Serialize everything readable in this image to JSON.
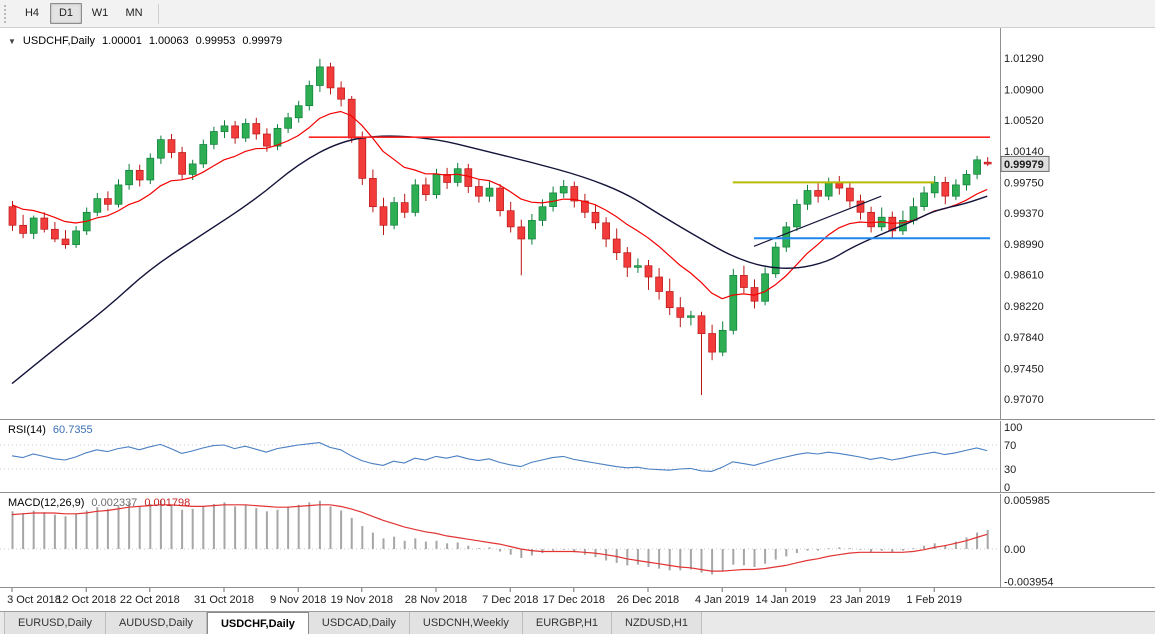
{
  "timeframe_toolbar": {
    "buttons": [
      {
        "label": "H4",
        "active": false
      },
      {
        "label": "D1",
        "active": true
      },
      {
        "label": "W1",
        "active": false
      },
      {
        "label": "MN",
        "active": false
      }
    ]
  },
  "chart_header": {
    "dropdown_icon": "▼",
    "symbol": "USDCHF,Daily",
    "open": "1.00001",
    "high": "1.00063",
    "low": "0.99953",
    "close": "0.99979"
  },
  "price_axis_labels": [
    "1.01290",
    "1.00900",
    "1.00520",
    "1.00140",
    "0.99750",
    "0.99370",
    "0.98990",
    "0.98610",
    "0.98220",
    "0.97840",
    "0.97450",
    "0.97070"
  ],
  "current_price_label": "0.99979",
  "time_axis_labels": [
    "3 Oct 2018",
    "12 Oct 2018",
    "22 Oct 2018",
    "31 Oct 2018",
    "9 Nov 2018",
    "19 Nov 2018",
    "28 Nov 2018",
    "7 Dec 2018",
    "17 Dec 2018",
    "26 Dec 2018",
    "4 Jan 2019",
    "14 Jan 2019",
    "23 Jan 2019",
    "1 Feb 2019"
  ],
  "rsi_panel": {
    "name": "RSI(14)",
    "value": "60.7355",
    "scale_labels": [
      "100",
      "70",
      "30",
      "0"
    ]
  },
  "macd_panel": {
    "name": "MACD(12,26,9)",
    "value_macd": "0.002337",
    "value_signal": "0.001798",
    "scale_labels": [
      "0.005985",
      "0.00",
      "-0.003954"
    ]
  },
  "chart_tabs": [
    {
      "label": "EURUSD,Daily",
      "active": false
    },
    {
      "label": "AUDUSD,Daily",
      "active": false
    },
    {
      "label": "USDCHF,Daily",
      "active": true
    },
    {
      "label": "USDCAD,Daily",
      "active": false
    },
    {
      "label": "USDCNH,Weekly",
      "active": false
    },
    {
      "label": "EURGBP,H1",
      "active": false
    },
    {
      "label": "NZDUSD,H1",
      "active": false
    }
  ],
  "colors": {
    "bull": "#2eae53",
    "bull_border": "#0e7e3b",
    "bear": "#f23b3b",
    "bear_border": "#bb1717",
    "ma_fast": "#f40000",
    "ma_slow": "#14143a",
    "resistance_line": "#ff2424",
    "pivot_line": "#b6ba00",
    "support_line": "#1c86ee",
    "rsi_line": "#4a7fc1",
    "macd_histogram": "#a6a6a6",
    "macd_signal": "#e23333"
  },
  "chart_data": {
    "type": "candlestick",
    "symbol": "USDCHF",
    "timeframe": "Daily",
    "price_axis_range": [
      0.9707,
      1.0129
    ],
    "time_tick_indices": [
      0,
      7,
      13,
      20,
      27,
      33,
      40,
      47,
      53,
      60,
      67,
      73,
      80,
      87
    ],
    "dates": [
      "3 Oct",
      "4 Oct",
      "5 Oct",
      "8 Oct",
      "9 Oct",
      "10 Oct",
      "11 Oct",
      "12 Oct",
      "15 Oct",
      "16 Oct",
      "17 Oct",
      "18 Oct",
      "19 Oct",
      "22 Oct",
      "23 Oct",
      "24 Oct",
      "25 Oct",
      "26 Oct",
      "29 Oct",
      "30 Oct",
      "31 Oct",
      "1 Nov",
      "2 Nov",
      "5 Nov",
      "6 Nov",
      "7 Nov",
      "8 Nov",
      "9 Nov",
      "12 Nov",
      "13 Nov",
      "14 Nov",
      "15 Nov",
      "16 Nov",
      "19 Nov",
      "20 Nov",
      "21 Nov",
      "22 Nov",
      "23 Nov",
      "26 Nov",
      "27 Nov",
      "28 Nov",
      "29 Nov",
      "30 Nov",
      "3 Dec",
      "4 Dec",
      "5 Dec",
      "6 Dec",
      "7 Dec",
      "10 Dec",
      "11 Dec",
      "12 Dec",
      "13 Dec",
      "14 Dec",
      "17 Dec",
      "18 Dec",
      "19 Dec",
      "20 Dec",
      "21 Dec",
      "24 Dec",
      "25 Dec",
      "26 Dec",
      "27 Dec",
      "28 Dec",
      "31 Dec",
      "1 Jan",
      "2 Jan",
      "3 Jan",
      "4 Jan",
      "7 Jan",
      "8 Jan",
      "9 Jan",
      "10 Jan",
      "11 Jan",
      "14 Jan",
      "15 Jan",
      "16 Jan",
      "17 Jan",
      "18 Jan",
      "21 Jan",
      "22 Jan",
      "23 Jan",
      "24 Jan",
      "25 Jan",
      "28 Jan",
      "29 Jan",
      "30 Jan",
      "31 Jan",
      "1 Feb",
      "4 Feb",
      "5 Feb",
      "6 Feb",
      "7 Feb",
      "8 Feb"
    ],
    "ohlc": [
      [
        0.9945,
        0.9952,
        0.9915,
        0.9922
      ],
      [
        0.9922,
        0.9935,
        0.9906,
        0.9912
      ],
      [
        0.9912,
        0.9934,
        0.9905,
        0.9931
      ],
      [
        0.9931,
        0.9938,
        0.9913,
        0.9917
      ],
      [
        0.9917,
        0.9926,
        0.9901,
        0.9905
      ],
      [
        0.9905,
        0.9916,
        0.9893,
        0.9898
      ],
      [
        0.9898,
        0.9921,
        0.9894,
        0.9915
      ],
      [
        0.9915,
        0.9944,
        0.991,
        0.9938
      ],
      [
        0.9938,
        0.9962,
        0.9933,
        0.9955
      ],
      [
        0.9955,
        0.9964,
        0.994,
        0.9948
      ],
      [
        0.9948,
        0.9979,
        0.9944,
        0.9972
      ],
      [
        0.9972,
        0.9998,
        0.9966,
        0.999
      ],
      [
        0.999,
        0.9997,
        0.997,
        0.9978
      ],
      [
        0.9978,
        1.0011,
        0.9973,
        1.0005
      ],
      [
        1.0005,
        1.0033,
        0.9998,
        1.0028
      ],
      [
        1.0028,
        1.0035,
        1.0005,
        1.0012
      ],
      [
        1.0012,
        1.0019,
        0.9979,
        0.9985
      ],
      [
        0.9985,
        1.0003,
        0.9978,
        0.9998
      ],
      [
        0.9998,
        1.0028,
        0.9993,
        1.0022
      ],
      [
        1.0022,
        1.0044,
        1.0016,
        1.0038
      ],
      [
        1.0038,
        1.0052,
        1.003,
        1.0045
      ],
      [
        1.0045,
        1.0051,
        1.0023,
        1.003
      ],
      [
        1.003,
        1.0054,
        1.0025,
        1.0048
      ],
      [
        1.0048,
        1.0055,
        1.0028,
        1.0035
      ],
      [
        1.0035,
        1.0042,
        1.0013,
        1.002
      ],
      [
        1.002,
        1.0047,
        1.0015,
        1.0042
      ],
      [
        1.0042,
        1.0061,
        1.0036,
        1.0055
      ],
      [
        1.0055,
        1.0076,
        1.0049,
        1.007
      ],
      [
        1.007,
        1.0101,
        1.0064,
        1.0095
      ],
      [
        1.0095,
        1.0128,
        1.0087,
        1.0118
      ],
      [
        1.0118,
        1.0123,
        1.0084,
        1.0092
      ],
      [
        1.0092,
        1.01,
        1.0069,
        1.0078
      ],
      [
        1.0078,
        1.0082,
        1.0024,
        1.003
      ],
      [
        1.003,
        1.0038,
        0.9972,
        0.998
      ],
      [
        0.998,
        0.9991,
        0.9938,
        0.9945
      ],
      [
        0.9945,
        0.9956,
        0.991,
        0.9922
      ],
      [
        0.9922,
        0.9957,
        0.9917,
        0.995
      ],
      [
        0.995,
        0.9961,
        0.9931,
        0.9938
      ],
      [
        0.9938,
        0.9979,
        0.9933,
        0.9972
      ],
      [
        0.9972,
        0.9981,
        0.9952,
        0.996
      ],
      [
        0.996,
        0.9992,
        0.9955,
        0.9985
      ],
      [
        0.9985,
        0.9993,
        0.9967,
        0.9975
      ],
      [
        0.9975,
        0.9999,
        0.997,
        0.9992
      ],
      [
        0.9992,
        0.9998,
        0.9962,
        0.997
      ],
      [
        0.997,
        0.9978,
        0.995,
        0.9958
      ],
      [
        0.9958,
        0.9976,
        0.9951,
        0.9968
      ],
      [
        0.9968,
        0.9973,
        0.9933,
        0.994
      ],
      [
        0.994,
        0.9951,
        0.9913,
        0.992
      ],
      [
        0.992,
        0.9929,
        0.986,
        0.9905
      ],
      [
        0.9905,
        0.9936,
        0.9898,
        0.9928
      ],
      [
        0.9928,
        0.9954,
        0.9921,
        0.9945
      ],
      [
        0.9945,
        0.997,
        0.9939,
        0.9962
      ],
      [
        0.9962,
        0.9978,
        0.9956,
        0.997
      ],
      [
        0.997,
        0.9976,
        0.9944,
        0.9952
      ],
      [
        0.9952,
        0.9961,
        0.9931,
        0.9938
      ],
      [
        0.9938,
        0.9948,
        0.9917,
        0.9925
      ],
      [
        0.9925,
        0.9932,
        0.9895,
        0.9905
      ],
      [
        0.9905,
        0.9918,
        0.9879,
        0.9888
      ],
      [
        0.9888,
        0.9895,
        0.9858,
        0.987
      ],
      [
        0.987,
        0.9881,
        0.9863,
        0.9872
      ],
      [
        0.9872,
        0.9879,
        0.9842,
        0.9858
      ],
      [
        0.9858,
        0.9869,
        0.983,
        0.984
      ],
      [
        0.984,
        0.9856,
        0.9811,
        0.982
      ],
      [
        0.982,
        0.9833,
        0.9796,
        0.9808
      ],
      [
        0.9808,
        0.9816,
        0.9798,
        0.981
      ],
      [
        0.981,
        0.9815,
        0.9712,
        0.9788
      ],
      [
        0.9788,
        0.9799,
        0.9755,
        0.9765
      ],
      [
        0.9765,
        0.9803,
        0.976,
        0.9792
      ],
      [
        0.9792,
        0.9868,
        0.9787,
        0.986
      ],
      [
        0.986,
        0.9872,
        0.9838,
        0.9845
      ],
      [
        0.9845,
        0.9855,
        0.9819,
        0.9828
      ],
      [
        0.9828,
        0.987,
        0.9823,
        0.9862
      ],
      [
        0.9862,
        0.9901,
        0.9857,
        0.9895
      ],
      [
        0.9895,
        0.9926,
        0.9889,
        0.992
      ],
      [
        0.992,
        0.9954,
        0.9915,
        0.9948
      ],
      [
        0.9948,
        0.9972,
        0.9941,
        0.9965
      ],
      [
        0.9965,
        0.9974,
        0.995,
        0.9958
      ],
      [
        0.9958,
        0.9981,
        0.9953,
        0.9975
      ],
      [
        0.9975,
        0.9983,
        0.996,
        0.9968
      ],
      [
        0.9968,
        0.9976,
        0.9944,
        0.9952
      ],
      [
        0.9952,
        0.996,
        0.9929,
        0.9938
      ],
      [
        0.9938,
        0.9945,
        0.9913,
        0.992
      ],
      [
        0.992,
        0.9944,
        0.9915,
        0.9932
      ],
      [
        0.9932,
        0.9939,
        0.9906,
        0.9915
      ],
      [
        0.9915,
        0.994,
        0.991,
        0.9928
      ],
      [
        0.9928,
        0.9956,
        0.9923,
        0.9945
      ],
      [
        0.9945,
        0.997,
        0.994,
        0.9962
      ],
      [
        0.9962,
        0.9983,
        0.9956,
        0.9975
      ],
      [
        0.9975,
        0.9982,
        0.9948,
        0.9958
      ],
      [
        0.9958,
        0.9979,
        0.9953,
        0.9972
      ],
      [
        0.9972,
        0.999,
        0.9965,
        0.9985
      ],
      [
        0.9985,
        1.0008,
        0.9979,
        1.0003
      ],
      [
        1.00001,
        1.00063,
        0.99953,
        0.99979
      ]
    ],
    "overlays": {
      "fast_ma_period": 12,
      "fast_ma_seed": 0.9952,
      "slow_ma_points": [
        [
          0,
          0.9726
        ],
        [
          4,
          0.9769
        ],
        [
          9,
          0.982
        ],
        [
          13,
          0.9868
        ],
        [
          18,
          0.9911
        ],
        [
          23,
          0.9954
        ],
        [
          27,
          0.9998
        ],
        [
          31,
          1.0026
        ],
        [
          35,
          1.0034
        ],
        [
          40,
          1.0029
        ],
        [
          44,
          1.0016
        ],
        [
          49,
          1.0
        ],
        [
          54,
          0.9982
        ],
        [
          58,
          0.9961
        ],
        [
          61,
          0.9936
        ],
        [
          65,
          0.9905
        ],
        [
          68,
          0.9883
        ],
        [
          71,
          0.987
        ],
        [
          74,
          0.9868
        ],
        [
          77,
          0.9877
        ],
        [
          79,
          0.9893
        ],
        [
          82,
          0.9911
        ],
        [
          85,
          0.9927
        ],
        [
          87,
          0.994
        ],
        [
          90,
          0.9949
        ],
        [
          92,
          0.9958
        ]
      ],
      "trendline": {
        "from": [
          70,
          0.9896
        ],
        "to": [
          82,
          0.9958
        ]
      },
      "hlines": [
        {
          "name": "resistance-line",
          "price": 1.0031,
          "from_index": 28,
          "to_index": null,
          "color_key": "resistance_line",
          "width": 1.6
        },
        {
          "name": "range-top-line",
          "price": 0.9975,
          "from_index": 68,
          "to_index": 87,
          "color_key": "pivot_line",
          "width": 2
        },
        {
          "name": "support-line",
          "price": 0.9906,
          "from_index": 70,
          "to_index": null,
          "color_key": "support_line",
          "width": 2
        }
      ]
    },
    "rsi": {
      "period": 14,
      "current": 60.7355,
      "range": [
        0,
        100
      ],
      "levels": [
        70,
        30
      ],
      "values": [
        52,
        49,
        55,
        51,
        47,
        45,
        50,
        57,
        62,
        59,
        64,
        67,
        62,
        67,
        71,
        64,
        56,
        60,
        65,
        69,
        70,
        64,
        68,
        63,
        58,
        64,
        67,
        70,
        72,
        74,
        66,
        62,
        52,
        44,
        39,
        36,
        43,
        40,
        48,
        45,
        51,
        48,
        52,
        47,
        44,
        47,
        41,
        37,
        34,
        41,
        45,
        49,
        51,
        46,
        43,
        40,
        37,
        34,
        32,
        33,
        30,
        29,
        28,
        30,
        31,
        27,
        26,
        33,
        42,
        39,
        36,
        41,
        46,
        50,
        54,
        57,
        55,
        58,
        56,
        53,
        50,
        46,
        49,
        45,
        48,
        52,
        55,
        58,
        54,
        57,
        61,
        65,
        60.7355
      ]
    },
    "macd": {
      "fast": 12,
      "slow": 26,
      "signal_period": 9,
      "current_macd": 0.002337,
      "current_signal": 0.001798,
      "scale_range": [
        -0.003954,
        0.005985
      ],
      "histogram": [
        0.0046,
        0.0044,
        0.0047,
        0.0045,
        0.0042,
        0.004,
        0.0043,
        0.0047,
        0.0051,
        0.0049,
        0.0053,
        0.0056,
        0.0052,
        0.0055,
        0.005985,
        0.0054,
        0.0048,
        0.0049,
        0.0052,
        0.0055,
        0.0057,
        0.0052,
        0.0054,
        0.005,
        0.0046,
        0.0048,
        0.0051,
        0.0054,
        0.0057,
        0.0059,
        0.0052,
        0.0047,
        0.0038,
        0.0028,
        0.002,
        0.0013,
        0.0015,
        0.001,
        0.0013,
        0.0009,
        0.001,
        0.0007,
        0.0008,
        0.0004,
        0.0001,
        0.0002,
        -0.0003,
        -0.0007,
        -0.0011,
        -0.0008,
        -0.0005,
        -0.0002,
        -0.0001,
        -0.0004,
        -0.0007,
        -0.001,
        -0.0014,
        -0.0017,
        -0.002,
        -0.0019,
        -0.0022,
        -0.0024,
        -0.0026,
        -0.0026,
        -0.0025,
        -0.0029,
        -0.0031,
        -0.0027,
        -0.0019,
        -0.002,
        -0.0022,
        -0.0018,
        -0.0013,
        -0.0009,
        -0.0005,
        -0.0002,
        -0.0002,
        0.0001,
        0.0002,
        0.0001,
        -0.0001,
        -0.0004,
        -0.0002,
        -0.0004,
        -0.0002,
        0.0001,
        0.0004,
        0.0007,
        0.0005,
        0.0009,
        0.0014,
        0.002,
        0.002337
      ],
      "signal": [
        0.0042,
        0.0043,
        0.0044,
        0.0044,
        0.0044,
        0.0043,
        0.0043,
        0.0044,
        0.0046,
        0.0047,
        0.0049,
        0.0051,
        0.0052,
        0.0053,
        0.0054,
        0.0054,
        0.0053,
        0.0052,
        0.0052,
        0.0053,
        0.0054,
        0.0054,
        0.0054,
        0.0053,
        0.0052,
        0.0051,
        0.0051,
        0.0052,
        0.0053,
        0.0054,
        0.0054,
        0.0052,
        0.0049,
        0.0045,
        0.004,
        0.0035,
        0.0031,
        0.0027,
        0.0024,
        0.0021,
        0.0019,
        0.0016,
        0.0014,
        0.0012,
        0.001,
        0.0008,
        0.0006,
        0.0003,
        0.0,
        -0.0002,
        -0.0003,
        -0.0003,
        -0.0003,
        -0.0003,
        -0.0004,
        -0.0005,
        -0.0007,
        -0.0009,
        -0.0012,
        -0.0014,
        -0.0016,
        -0.0018,
        -0.002,
        -0.0022,
        -0.0023,
        -0.0025,
        -0.0027,
        -0.0027,
        -0.0026,
        -0.0025,
        -0.0025,
        -0.0024,
        -0.0022,
        -0.002,
        -0.0017,
        -0.0014,
        -0.0012,
        -0.0009,
        -0.0007,
        -0.0005,
        -0.0004,
        -0.0004,
        -0.0004,
        -0.0004,
        -0.0004,
        -0.0003,
        -0.0001,
        0.0002,
        0.0004,
        0.0007,
        0.001,
        0.0014,
        0.001798
      ]
    }
  }
}
